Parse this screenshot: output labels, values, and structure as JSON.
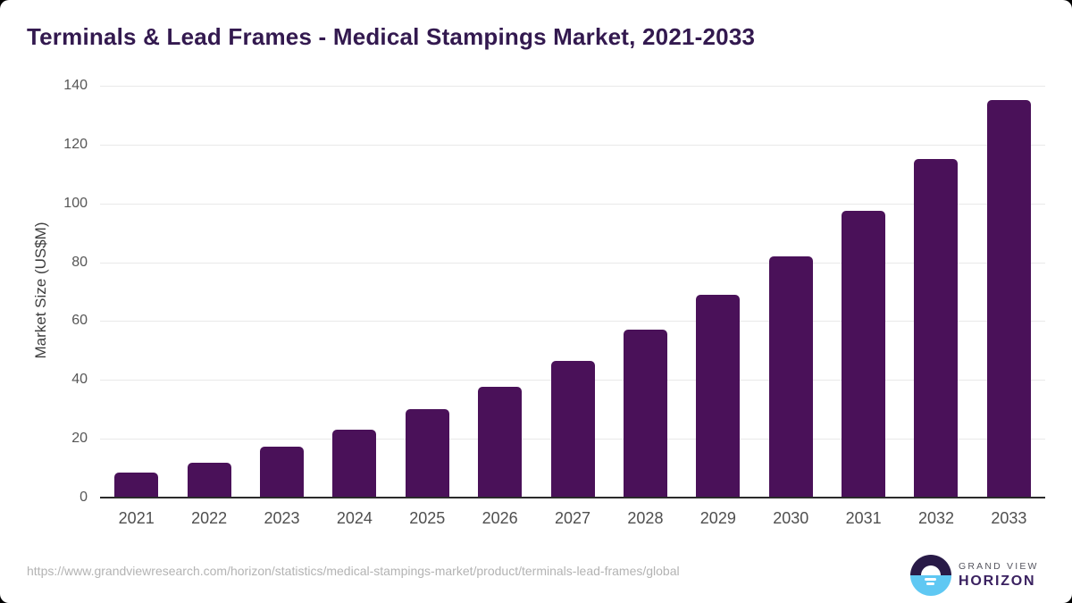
{
  "title": "Terminals & Lead Frames - Medical Stampings Market, 2021-2033",
  "chart_data": {
    "type": "bar",
    "categories": [
      "2021",
      "2022",
      "2023",
      "2024",
      "2025",
      "2026",
      "2027",
      "2028",
      "2029",
      "2030",
      "2031",
      "2032",
      "2033"
    ],
    "values": [
      8.5,
      11.8,
      17.3,
      23.2,
      30,
      37.6,
      46.6,
      57,
      68.8,
      82,
      97.5,
      115,
      135
    ],
    "title": "Terminals & Lead Frames - Medical Stampings Market, 2021-2033",
    "xlabel": "",
    "ylabel": "Market Size (US$M)",
    "ylim": [
      0,
      140
    ],
    "ytick_step": 20,
    "grid": "horizontal",
    "legend": "none",
    "bar_color": "#4a1159"
  },
  "colors": {
    "title_text": "#33194f",
    "bar": "#4a1159",
    "gridline": "#e9e9e9",
    "axis_line": "#2b2b2b",
    "tick_text": "#565656",
    "logo_top": "#281a47",
    "logo_bottom": "#5fc8f3"
  },
  "footer": {
    "source_url": "https://www.grandviewresearch.com/horizon/statistics/medical-stampings-market/product/terminals-lead-frames/global",
    "brand": {
      "line1": "GRAND VIEW",
      "line2": "HORIZON",
      "logo_icon": "horizon-sunrise-icon"
    }
  }
}
